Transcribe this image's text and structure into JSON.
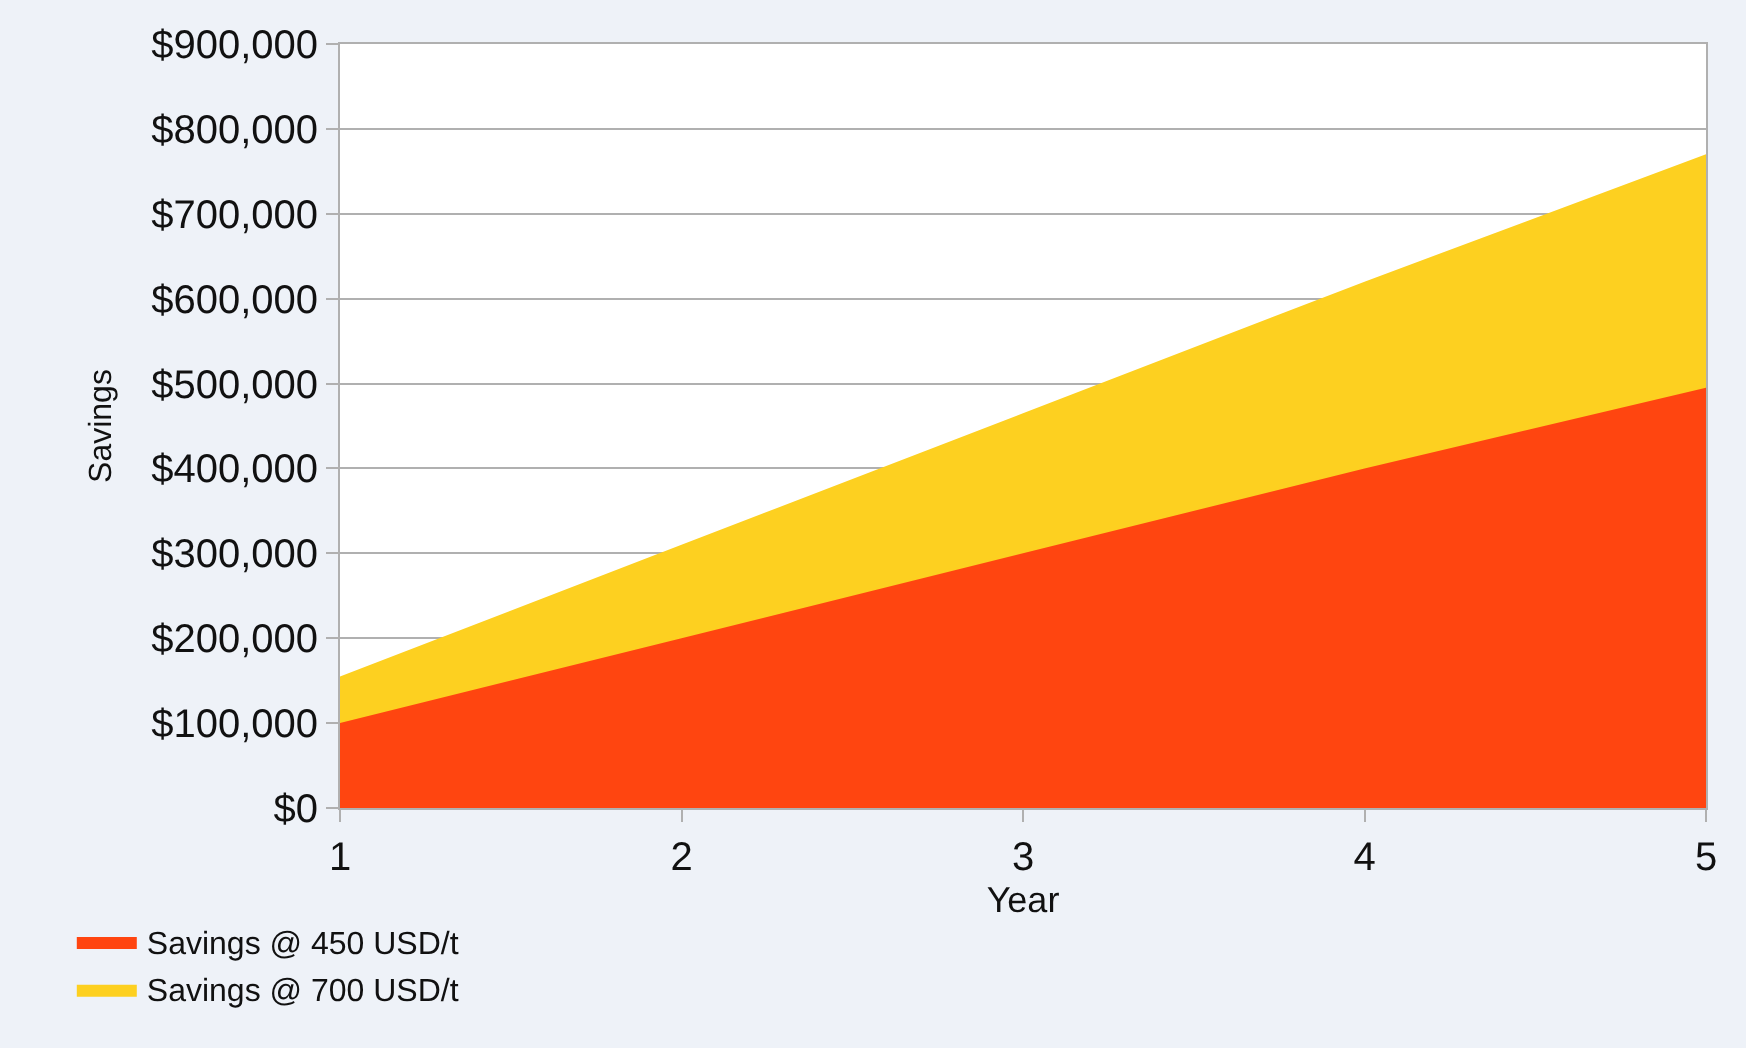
{
  "chart_data": {
    "type": "area",
    "xlabel": "Year",
    "ylabel": "Savings",
    "x": [
      1,
      2,
      3,
      4,
      5
    ],
    "series": [
      {
        "name": "Savings @ 450 USD/t",
        "color": "#ff4510",
        "values": [
          100000,
          200000,
          300000,
          400000,
          495000
        ]
      },
      {
        "name": "Savings @ 700 USD/t",
        "color": "#fdd020",
        "values": [
          155000,
          310000,
          465000,
          620000,
          770000
        ]
      }
    ],
    "xlim": [
      1,
      5
    ],
    "xticks": [
      1,
      2,
      3,
      4,
      5
    ],
    "ylim": [
      0,
      900000
    ],
    "yticks": [
      {
        "value": 0,
        "label": "$0"
      },
      {
        "value": 100000,
        "label": "$100,000"
      },
      {
        "value": 200000,
        "label": "$200,000"
      },
      {
        "value": 300000,
        "label": "$300,000"
      },
      {
        "value": 400000,
        "label": "$400,000"
      },
      {
        "value": 500000,
        "label": "$500,000"
      },
      {
        "value": 600000,
        "label": "$600,000"
      },
      {
        "value": 700000,
        "label": "$700,000"
      },
      {
        "value": 800000,
        "label": "$800,000"
      },
      {
        "value": 900000,
        "label": "$900,000"
      }
    ],
    "grid": "y",
    "legend": "bottom left"
  }
}
